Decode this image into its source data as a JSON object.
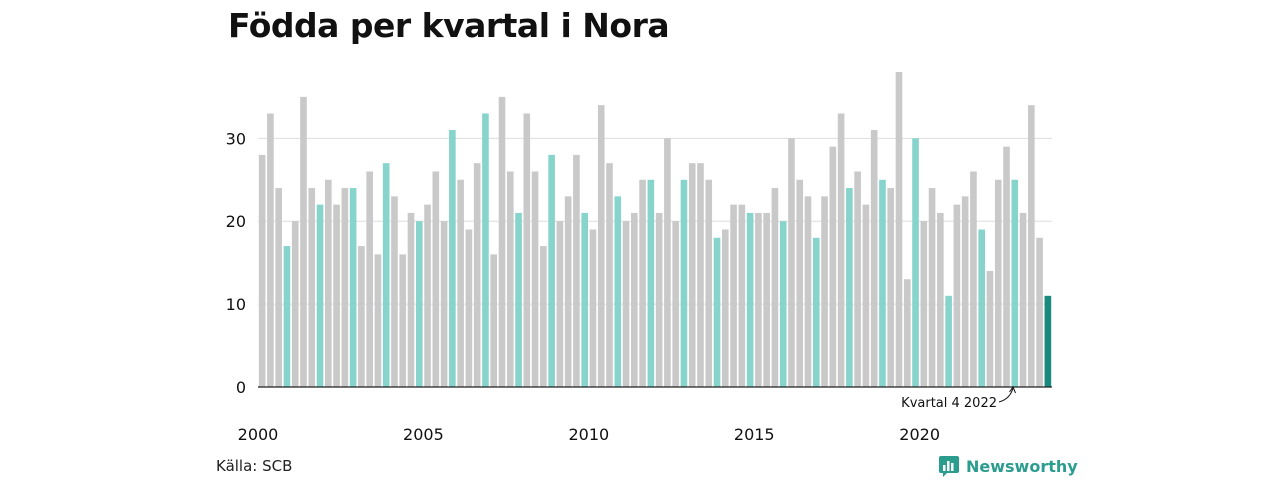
{
  "title": "Födda per kvartal i Nora",
  "source": "Källa: SCB",
  "brand": "Newsworthy",
  "annotation": "Kvartal 4 2022",
  "colors": {
    "default": "#c9c9c9",
    "q4": "#87d4cc",
    "latest": "#1a8a7e",
    "grid": "#dddddd",
    "baseline": "#222222",
    "brand": "#2a9d8f"
  },
  "chart_data": {
    "type": "bar",
    "title": "Födda per kvartal i Nora",
    "xlabel": "",
    "ylabel": "",
    "ylim": [
      0,
      38
    ],
    "yticks": [
      0,
      10,
      20,
      30
    ],
    "grid": true,
    "x_tick_labels": [
      "2000",
      "2005",
      "2010",
      "2015",
      "2020"
    ],
    "annotation": {
      "text": "Kvartal 4 2022",
      "points_to": "2022 Q4"
    },
    "series": [
      {
        "start_year": 2000,
        "start_quarter": 1,
        "values": [
          28,
          33,
          24,
          17,
          20,
          35,
          24,
          22,
          25,
          22,
          24,
          24,
          17,
          26,
          16,
          27,
          23,
          16,
          21,
          20,
          22,
          26,
          20,
          31,
          25,
          19,
          27,
          33,
          16,
          35,
          26,
          21,
          33,
          26,
          17,
          28,
          20,
          23,
          28,
          21,
          19,
          34,
          27,
          23,
          20,
          21,
          25,
          25,
          21,
          30,
          20,
          25,
          27,
          27,
          25,
          18,
          19,
          22,
          22,
          21,
          21,
          21,
          24,
          20,
          30,
          25,
          23,
          18,
          23,
          29,
          33,
          24,
          26,
          22,
          31,
          25,
          24,
          38,
          13,
          30,
          20,
          24,
          21,
          11,
          22,
          23,
          26,
          19,
          14,
          25,
          29,
          25,
          21,
          34,
          18,
          11
        ]
      }
    ]
  }
}
